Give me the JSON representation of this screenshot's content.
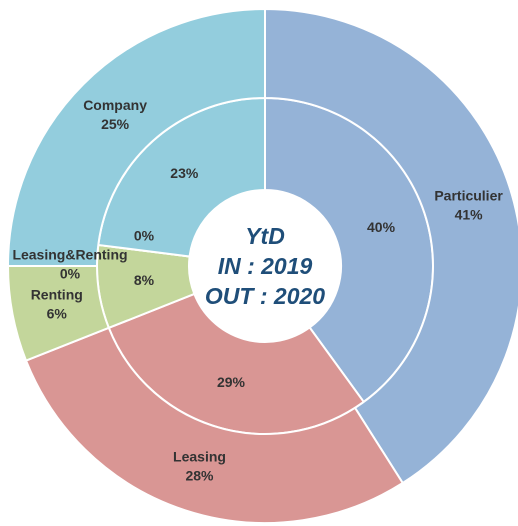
{
  "chart_data": {
    "type": "double-donut",
    "center_labels": [
      "YtD",
      "IN : 2019",
      "OUT : 2020"
    ],
    "categories": [
      "Particulier",
      "Leasing",
      "Renting",
      "Leasing&Renting",
      "Company"
    ],
    "colors": [
      "#95b3d7",
      "#d99694",
      "#c3d69b",
      "#e8eef7",
      "#93cddd"
    ],
    "series": [
      {
        "ring": "inner",
        "values": [
          40,
          29,
          8,
          0,
          23
        ],
        "value_labels": [
          "40%",
          "29%",
          "8%",
          "0%",
          "23%"
        ]
      },
      {
        "ring": "outer",
        "values": [
          41,
          28,
          6,
          0,
          25
        ],
        "value_labels": [
          "41%",
          "28%",
          "6%",
          "0%",
          "25%"
        ]
      }
    ]
  }
}
